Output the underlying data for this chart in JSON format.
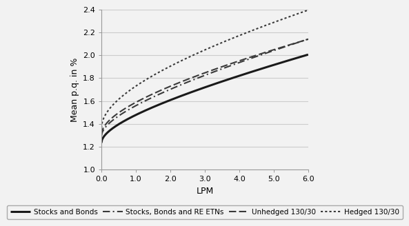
{
  "xlabel": "LPM",
  "ylabel": "Mean p.q. in %",
  "xlim": [
    0.0,
    6.0
  ],
  "ylim": [
    1.0,
    2.4
  ],
  "xticks": [
    0.0,
    1.0,
    2.0,
    3.0,
    4.0,
    5.0,
    6.0
  ],
  "yticks": [
    1.0,
    1.2,
    1.4,
    1.6,
    1.8,
    2.0,
    2.2,
    2.4
  ],
  "series_labels": [
    "Stocks and Bonds",
    "Stocks, Bonds and RE ETNs",
    "Unhedged 130/30",
    "Hedged 130/30"
  ],
  "series_data": [
    [
      [
        0.0,
        1.25
      ],
      [
        0.5,
        1.365
      ],
      [
        1.0,
        1.465
      ],
      [
        2.0,
        1.61
      ],
      [
        3.0,
        1.74
      ],
      [
        4.0,
        1.845
      ],
      [
        5.0,
        1.925
      ],
      [
        6.0,
        1.975
      ]
    ],
    [
      [
        0.0,
        1.31
      ],
      [
        0.5,
        1.435
      ],
      [
        1.0,
        1.545
      ],
      [
        2.0,
        1.705
      ],
      [
        3.0,
        1.845
      ],
      [
        4.0,
        1.965
      ],
      [
        5.0,
        2.055
      ],
      [
        6.0,
        2.105
      ]
    ],
    [
      [
        0.0,
        1.33
      ],
      [
        0.5,
        1.455
      ],
      [
        1.0,
        1.565
      ],
      [
        2.0,
        1.73
      ],
      [
        3.0,
        1.875
      ],
      [
        4.0,
        1.995
      ],
      [
        5.0,
        2.065
      ],
      [
        6.0,
        2.09
      ]
    ],
    [
      [
        0.0,
        1.395
      ],
      [
        0.5,
        1.56
      ],
      [
        1.0,
        1.695
      ],
      [
        2.0,
        1.92
      ],
      [
        3.0,
        2.09
      ],
      [
        4.0,
        2.215
      ],
      [
        5.0,
        2.295
      ],
      [
        6.0,
        2.345
      ]
    ]
  ],
  "colors": [
    "#1a1a1a",
    "#3a3a3a",
    "#3a3a3a",
    "#3a3a3a"
  ],
  "linewidths": [
    2.2,
    1.5,
    1.5,
    1.5
  ],
  "background_color": "#f2f2f2",
  "grid_color": "#cccccc",
  "legend_fontsize": 7.5,
  "axis_label_fontsize": 9,
  "tick_fontsize": 8
}
